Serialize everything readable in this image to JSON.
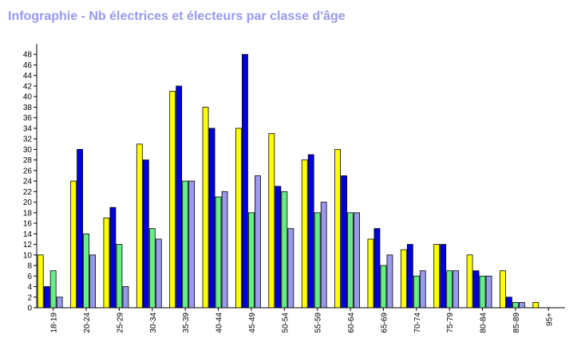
{
  "chart_data": {
    "type": "bar",
    "title": "Infographie - Nb électrices et électeurs par classe d'âge",
    "xlabel": "",
    "ylabel": "",
    "ylim": [
      0,
      50
    ],
    "yticks": [
      0,
      2,
      4,
      6,
      8,
      10,
      12,
      14,
      16,
      18,
      20,
      22,
      24,
      26,
      28,
      30,
      32,
      34,
      36,
      38,
      40,
      42,
      44,
      46,
      48
    ],
    "grid": false,
    "legend": "none",
    "categories": [
      "18-19",
      "20-24",
      "25-29",
      "30-34",
      "35-39",
      "40-44",
      "45-49",
      "50-54",
      "55-59",
      "60-64",
      "65-69",
      "70-74",
      "75-79",
      "80-84",
      "85-89",
      "95+"
    ],
    "series": [
      {
        "color": "#ffff00",
        "values": [
          10,
          24,
          17,
          31,
          41,
          38,
          34,
          33,
          28,
          30,
          13,
          11,
          12,
          10,
          7,
          1
        ]
      },
      {
        "color": "#0000dd",
        "values": [
          4,
          30,
          19,
          28,
          42,
          34,
          48,
          23,
          29,
          25,
          15,
          12,
          12,
          7,
          2,
          0
        ]
      },
      {
        "color": "#66ee88",
        "values": [
          7,
          14,
          12,
          15,
          24,
          21,
          18,
          22,
          18,
          18,
          8,
          6,
          7,
          6,
          1,
          0
        ]
      },
      {
        "color": "#9999ee",
        "values": [
          2,
          10,
          4,
          13,
          24,
          22,
          25,
          15,
          20,
          18,
          10,
          7,
          7,
          6,
          1,
          0
        ]
      }
    ]
  }
}
